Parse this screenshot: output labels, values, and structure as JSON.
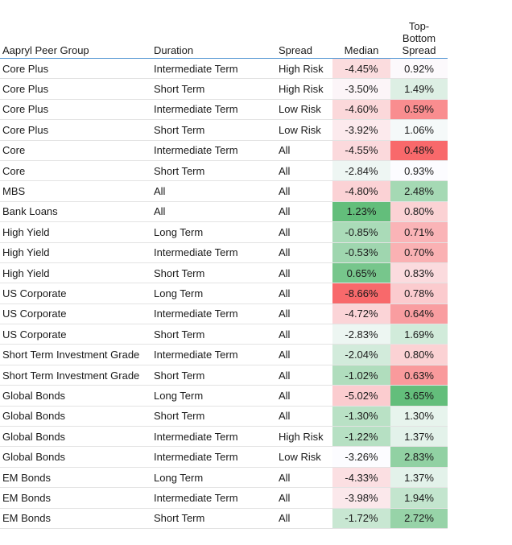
{
  "headers": [
    "Aapryl Peer Group",
    "Duration",
    "Spread",
    "Median",
    "Top-\nBottom\nSpread"
  ],
  "rows": [
    [
      "Core Plus",
      "Intermediate Term",
      "High Risk",
      "-4.45%",
      "0.92%"
    ],
    [
      "Core Plus",
      "Short Term",
      "High Risk",
      "-3.50%",
      "1.49%"
    ],
    [
      "Core Plus",
      "Intermediate Term",
      "Low Risk",
      "-4.60%",
      "0.59%"
    ],
    [
      "Core Plus",
      "Short Term",
      "Low Risk",
      "-3.92%",
      "1.06%"
    ],
    [
      "Core",
      "Intermediate Term",
      "All",
      "-4.55%",
      "0.48%"
    ],
    [
      "Core",
      "Short Term",
      "All",
      "-2.84%",
      "0.93%"
    ],
    [
      "MBS",
      "All",
      "All",
      "-4.80%",
      "2.48%"
    ],
    [
      "Bank Loans",
      "All",
      "All",
      "1.23%",
      "0.80%"
    ],
    [
      "High Yield",
      "Long Term",
      "All",
      "-0.85%",
      "0.71%"
    ],
    [
      "High Yield",
      "Intermediate Term",
      "All",
      "-0.53%",
      "0.70%"
    ],
    [
      "High Yield",
      "Short Term",
      "All",
      "0.65%",
      "0.83%"
    ],
    [
      "US Corporate",
      "Long Term",
      "All",
      "-8.66%",
      "0.78%"
    ],
    [
      "US Corporate",
      "Intermediate Term",
      "All",
      "-4.72%",
      "0.64%"
    ],
    [
      "US Corporate",
      "Short Term",
      "All",
      "-2.83%",
      "1.69%"
    ],
    [
      "Short Term Investment Grade",
      "Intermediate Term",
      "All",
      "-2.04%",
      "0.80%"
    ],
    [
      "Short Term Investment Grade",
      "Short Term",
      "All",
      "-1.02%",
      "0.63%"
    ],
    [
      "Global Bonds",
      "Long Term",
      "All",
      "-5.02%",
      "3.65%"
    ],
    [
      "Global Bonds",
      "Short Term",
      "All",
      "-1.30%",
      "1.30%"
    ],
    [
      "Global Bonds",
      "Intermediate Term",
      "High Risk",
      "-1.22%",
      "1.37%"
    ],
    [
      "Global Bonds",
      "Intermediate Term",
      "Low Risk",
      "-3.26%",
      "2.83%"
    ],
    [
      "EM Bonds",
      "Long Term",
      "All",
      "-4.33%",
      "1.37%"
    ],
    [
      "EM Bonds",
      "Intermediate Term",
      "All",
      "-3.98%",
      "1.94%"
    ],
    [
      "EM Bonds",
      "Short Term",
      "All",
      "-1.72%",
      "2.72%"
    ]
  ],
  "chart_data": {
    "type": "table",
    "columns": [
      "Aapryl Peer Group",
      "Duration",
      "Spread",
      "Median",
      "Top-Bottom Spread"
    ],
    "median": [
      -4.45,
      -3.5,
      -4.6,
      -3.92,
      -4.55,
      -2.84,
      -4.8,
      1.23,
      -0.85,
      -0.53,
      0.65,
      -8.66,
      -4.72,
      -2.83,
      -2.04,
      -1.02,
      -5.02,
      -1.3,
      -1.22,
      -3.26,
      -4.33,
      -3.98,
      -1.72
    ],
    "top_bottom_spread": [
      0.92,
      1.49,
      0.59,
      1.06,
      0.48,
      0.93,
      2.48,
      0.8,
      0.71,
      0.7,
      0.83,
      0.78,
      0.64,
      1.69,
      0.8,
      0.63,
      3.65,
      1.3,
      1.37,
      2.83,
      1.37,
      1.94,
      2.72
    ],
    "color_scale": {
      "low": "#f8696b",
      "mid": "#fcfcff",
      "high": "#63be7b"
    }
  }
}
